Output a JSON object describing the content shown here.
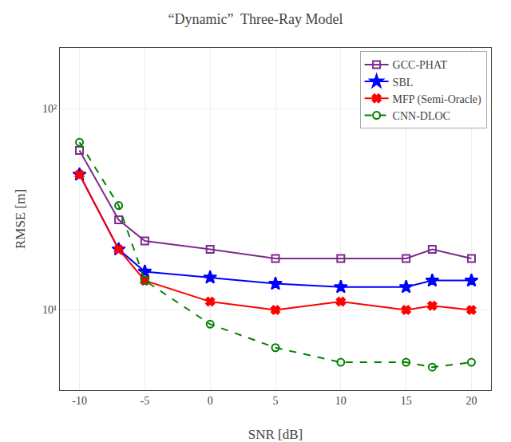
{
  "chart_data": {
    "type": "line",
    "title": "“Dynamic”  Three-Ray Model",
    "xlabel": "SNR [dB]",
    "ylabel": "RMSE [m]",
    "x": [
      -10,
      -7,
      -5,
      0,
      5,
      10,
      15,
      17,
      20
    ],
    "series": [
      {
        "name": "GCC-PHAT",
        "color": "#7B2D8B",
        "marker": "square-open",
        "line_style": "solid",
        "values": [
          62,
          28,
          22,
          20,
          18,
          18,
          18,
          20,
          18
        ]
      },
      {
        "name": "SBL",
        "color": "#0000FF",
        "marker": "star",
        "line_style": "solid",
        "values": [
          47,
          20,
          15.5,
          14.5,
          13.5,
          13,
          13,
          14,
          14
        ]
      },
      {
        "name": "MFP (Semi-Oracle)",
        "color": "#FF0000",
        "marker": "x",
        "line_style": "solid",
        "values": [
          47,
          20,
          14,
          11,
          10,
          11,
          10,
          10.5,
          10
        ]
      },
      {
        "name": "CNN-DLOC",
        "color": "#008000",
        "marker": "circle-open",
        "line_style": "dashed",
        "values": [
          68,
          33,
          14,
          8.5,
          6.5,
          5.5,
          5.5,
          5.2,
          5.5
        ]
      }
    ],
    "xlim": [
      -11.5,
      21.5
    ],
    "xticks": [
      -10,
      -5,
      0,
      5,
      10,
      15,
      20
    ],
    "ylim": [
      4,
      200
    ],
    "yticks": [
      {
        "value": 10,
        "label": "10¹"
      },
      {
        "value": 100,
        "label": "10²"
      }
    ],
    "log": "y",
    "grid": true,
    "legend": "upper right"
  }
}
